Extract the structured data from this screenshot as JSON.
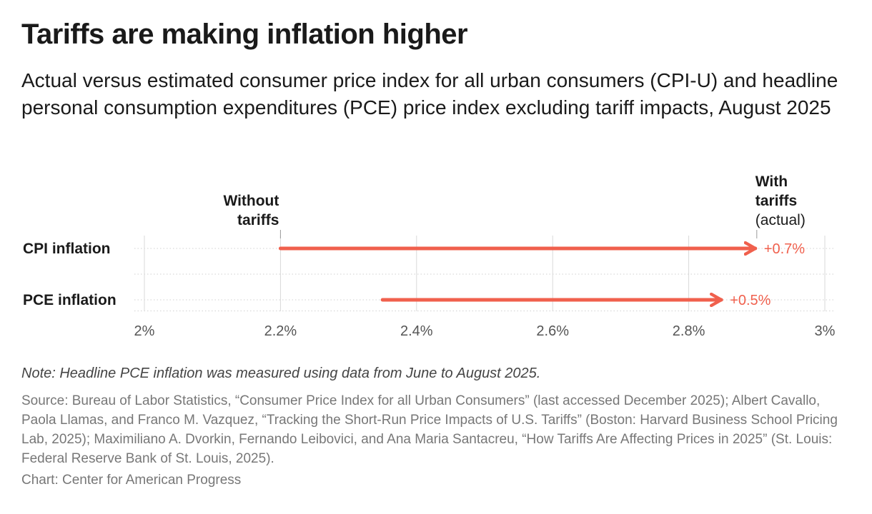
{
  "header": {
    "title": "Tariffs are making inflation higher",
    "subtitle": "Actual versus estimated consumer price index for all urban consumers (CPI-U) and headline personal consumption expenditures (PCE) price index excluding tariff impacts, August 2025"
  },
  "chart_data": {
    "type": "arrow",
    "categories": [
      "CPI inflation",
      "PCE inflation"
    ],
    "series": [
      {
        "name": "Without tariffs",
        "values": [
          2.2,
          2.35
        ]
      },
      {
        "name": "With tariffs (actual)",
        "values": [
          2.9,
          2.85
        ]
      }
    ],
    "delta_labels": [
      "+0.7%",
      "+0.5%"
    ],
    "header_labels": {
      "without": [
        "Without",
        "tariffs"
      ],
      "with": [
        "With",
        "tariffs",
        "(actual)"
      ]
    },
    "x_ticks": [
      2.0,
      2.2,
      2.4,
      2.6,
      2.8,
      3.0
    ],
    "x_tick_labels": [
      "2%",
      "2.2%",
      "2.4%",
      "2.6%",
      "2.8%",
      "3%"
    ],
    "xlim": [
      2.0,
      3.0
    ],
    "grid": true,
    "colors": {
      "arrow": "#f0604d",
      "grid": "#d9d9d9",
      "text": "#1a1a1a",
      "muted": "#777777"
    }
  },
  "footer": {
    "note": "Note: Headline PCE inflation was measured using data from June to August 2025.",
    "source": "Source: Bureau of Labor Statistics, “Consumer Price Index for all Urban Consumers” (last accessed December 2025); Albert Cavallo, Paola Llamas, and Franco M. Vazquez, “Tracking the Short-Run Price Impacts of U.S. Tariffs” (Boston: Harvard Business School Pricing Lab, 2025); Maximiliano A. Dvorkin, Fernando Leibovici, and Ana Maria Santacreu, “How Tariffs Are Affecting Prices in 2025” (St. Louis: Federal Reserve Bank of St. Louis, 2025).",
    "credit": "Chart: Center for American Progress"
  }
}
